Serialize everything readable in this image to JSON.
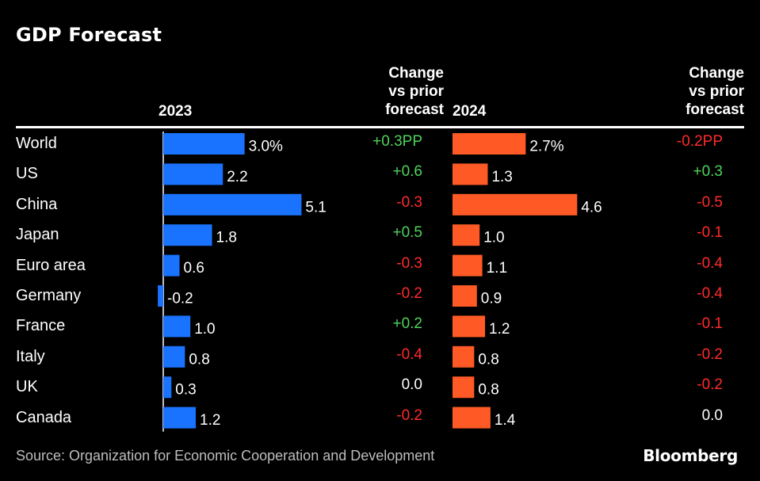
{
  "title": "GDP Forecast",
  "source": "Source: Organization for Economic Cooperation and Development",
  "brand": "Bloomberg",
  "headers": {
    "year_2023": "2023",
    "year_2024": "2024",
    "change_2023": [
      "Change",
      "vs prior",
      "forecast"
    ],
    "change_2024": [
      "Change",
      "vs prior",
      "forecast"
    ]
  },
  "colors": {
    "bar_2023": "#1a73ff",
    "bar_2024": "#ff5a26",
    "positive": "#4fd35b",
    "negative": "#ff2b2b",
    "neutral": "#ffffff"
  },
  "chart_data": {
    "type": "bar",
    "categories": [
      "World",
      "US",
      "China",
      "Japan",
      "Euro area",
      "Germany",
      "France",
      "Italy",
      "UK",
      "Canada"
    ],
    "series": [
      {
        "name": "2023",
        "values": [
          3.0,
          2.2,
          5.1,
          1.8,
          0.6,
          -0.2,
          1.0,
          0.8,
          0.3,
          1.2
        ],
        "labels": [
          "3.0%",
          "2.2",
          "5.1",
          "1.8",
          "0.6",
          "-0.2",
          "1.0",
          "0.8",
          "0.3",
          "1.2"
        ],
        "change_labels": [
          "+0.3PP",
          "+0.6",
          "-0.3",
          "+0.5",
          "-0.3",
          "-0.2",
          "+0.2",
          "-0.4",
          "0.0",
          "-0.2"
        ]
      },
      {
        "name": "2024",
        "values": [
          2.7,
          1.3,
          4.6,
          1.0,
          1.1,
          0.9,
          1.2,
          0.8,
          0.8,
          1.4
        ],
        "labels": [
          "2.7%",
          "1.3",
          "4.6",
          "1.0",
          "1.1",
          "0.9",
          "1.2",
          "0.8",
          "0.8",
          "1.4"
        ],
        "change_labels": [
          "-0.2PP",
          "+0.3",
          "-0.5",
          "-0.1",
          "-0.4",
          "-0.4",
          "-0.1",
          "-0.2",
          "-0.2",
          "0.0"
        ]
      }
    ]
  }
}
